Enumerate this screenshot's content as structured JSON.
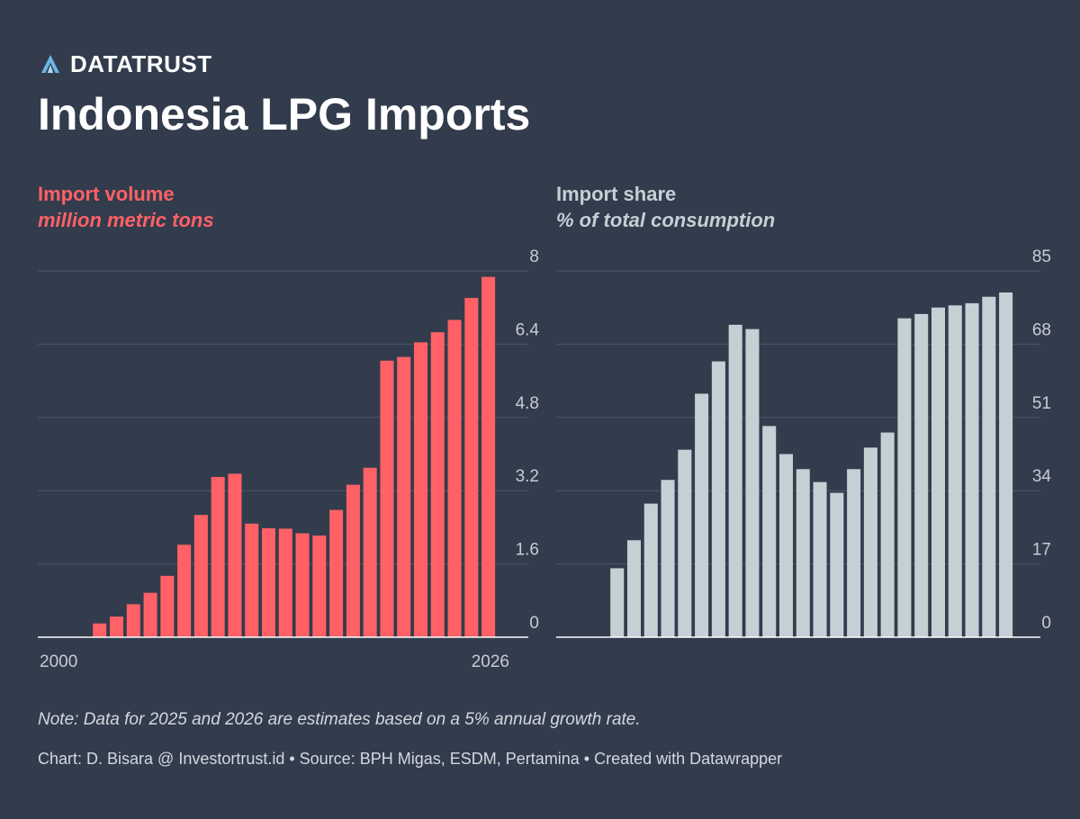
{
  "brand": {
    "name": "DATATRUST",
    "logo_icon": "datatrust-logo-icon"
  },
  "title": "Indonesia LPG Imports",
  "colors": {
    "background": "#323c4d",
    "volume_bar": "#ff6166",
    "share_bar": "#c4d0d4",
    "gridline": "#4c5668",
    "baseline": "#ffffff"
  },
  "chart_data": [
    {
      "type": "bar",
      "title": "Import volume",
      "subtitle": "million metric tons",
      "x_tick_labels": [
        "2000",
        "2026"
      ],
      "x_range": [
        2000,
        2026
      ],
      "ylim": [
        0,
        8
      ],
      "y_ticks": [
        "0",
        "1.6",
        "3.2",
        "4.8",
        "6.4",
        "8"
      ],
      "grid": true,
      "categories": [
        2000,
        2001,
        2002,
        2003,
        2004,
        2005,
        2006,
        2007,
        2008,
        2009,
        2010,
        2011,
        2012,
        2013,
        2014,
        2015,
        2016,
        2017,
        2018,
        2019,
        2020,
        2021,
        2022,
        2023,
        2024,
        2025,
        2026
      ],
      "values": [
        0,
        0,
        0,
        0.3,
        0.45,
        0.72,
        0.97,
        1.34,
        2.02,
        2.67,
        3.5,
        3.57,
        2.48,
        2.38,
        2.37,
        2.27,
        2.22,
        2.78,
        3.33,
        3.7,
        6.04,
        6.12,
        6.44,
        6.66,
        6.93,
        7.41,
        7.87
      ]
    },
    {
      "type": "bar",
      "title": "Import share",
      "subtitle": "% of total consumption",
      "x_tick_labels": [],
      "x_range": [
        2000,
        2026
      ],
      "ylim": [
        0,
        85
      ],
      "y_ticks": [
        "0",
        "17",
        "34",
        "51",
        "68",
        "85"
      ],
      "grid": true,
      "categories": [
        2000,
        2001,
        2002,
        2003,
        2004,
        2005,
        2006,
        2007,
        2008,
        2009,
        2010,
        2011,
        2012,
        2013,
        2014,
        2015,
        2016,
        2017,
        2018,
        2019,
        2020,
        2021,
        2022,
        2023,
        2024,
        2025,
        2026
      ],
      "values": [
        0,
        0,
        0,
        16,
        22.5,
        31,
        36.5,
        43.5,
        56.5,
        64,
        72.5,
        71.5,
        49,
        42.5,
        39,
        36,
        33.5,
        39,
        44,
        47.5,
        74,
        75,
        76.5,
        77,
        77.5,
        79,
        80
      ]
    }
  ],
  "note": "Note: Data for 2025 and 2026 are estimates based on a 5% annual growth rate.",
  "credit": "Chart: D. Bisara @ Investortrust.id • Source: BPH Migas, ESDM, Pertamina • Created with Datawrapper"
}
